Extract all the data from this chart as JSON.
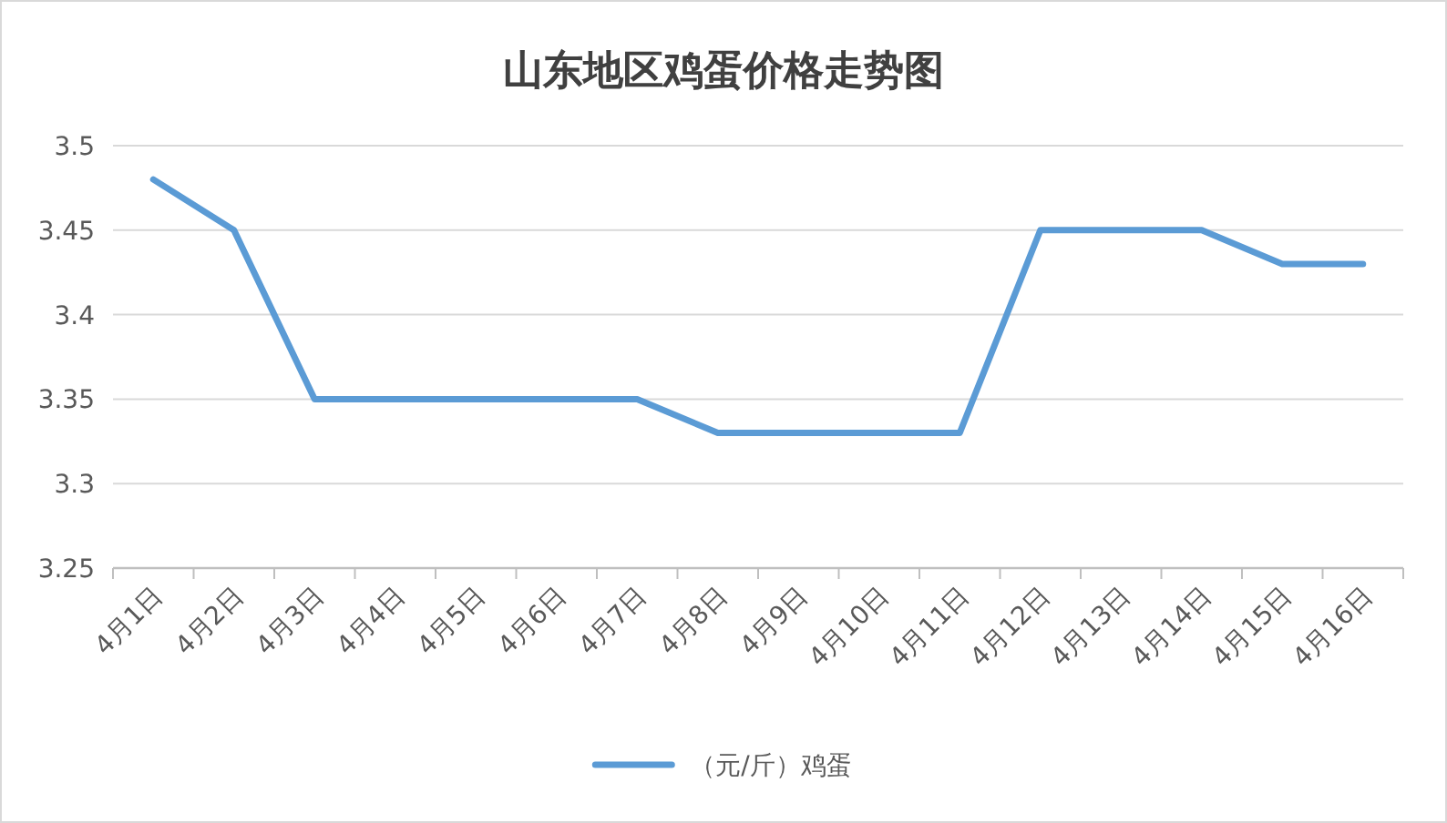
{
  "chart_data": {
    "type": "line",
    "title": "山东地区鸡蛋价格走势图",
    "categories": [
      "4月1日",
      "4月2日",
      "4月3日",
      "4月4日",
      "4月5日",
      "4月6日",
      "4月7日",
      "4月8日",
      "4月9日",
      "4月10日",
      "4月11日",
      "4月12日",
      "4月13日",
      "4月14日",
      "4月15日",
      "4月16日"
    ],
    "series": [
      {
        "name": "（元/斤）鸡蛋",
        "color": "#5b9bd5",
        "values": [
          3.48,
          3.45,
          3.35,
          3.35,
          3.35,
          3.35,
          3.35,
          3.33,
          3.33,
          3.33,
          3.33,
          3.45,
          3.45,
          3.45,
          3.43,
          3.43
        ]
      }
    ],
    "ylim": [
      3.25,
      3.5
    ],
    "yticks": [
      3.25,
      3.3,
      3.35,
      3.4,
      3.45,
      3.5
    ],
    "grid": "y",
    "legend": "bottom",
    "line_style": "solid"
  }
}
